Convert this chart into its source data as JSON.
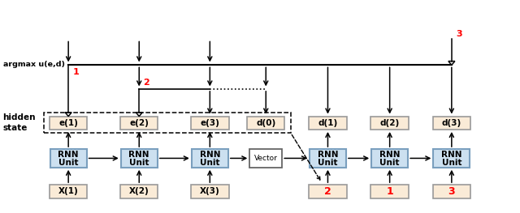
{
  "fig_width": 6.4,
  "fig_height": 2.63,
  "dpi": 100,
  "bg_color": "#ffffff",
  "encoder_rnn_color": "#cce0f0",
  "decoder_rnn_color": "#cce0f0",
  "hidden_color": "#faebd7",
  "input_color": "#faebd7",
  "vector_color": "#ffffff",
  "rnn_border_color": "#7a9fbe",
  "hidden_border_color": "#999999",
  "red_color": "#ff0000",
  "encoder_labels": [
    "e(1)",
    "e(2)",
    "e(3)"
  ],
  "decoder_labels": [
    "d(0)",
    "d(1)",
    "d(2)",
    "d(3)"
  ],
  "encoder_input_labels": [
    "X(1)",
    "X(2)",
    "X(3)"
  ],
  "decoder_input_labels": [
    "2",
    "1",
    "3"
  ],
  "argmax_label": "argmax u(e,d)",
  "hidden_label_top": "hidden",
  "hidden_label_bot": "state"
}
